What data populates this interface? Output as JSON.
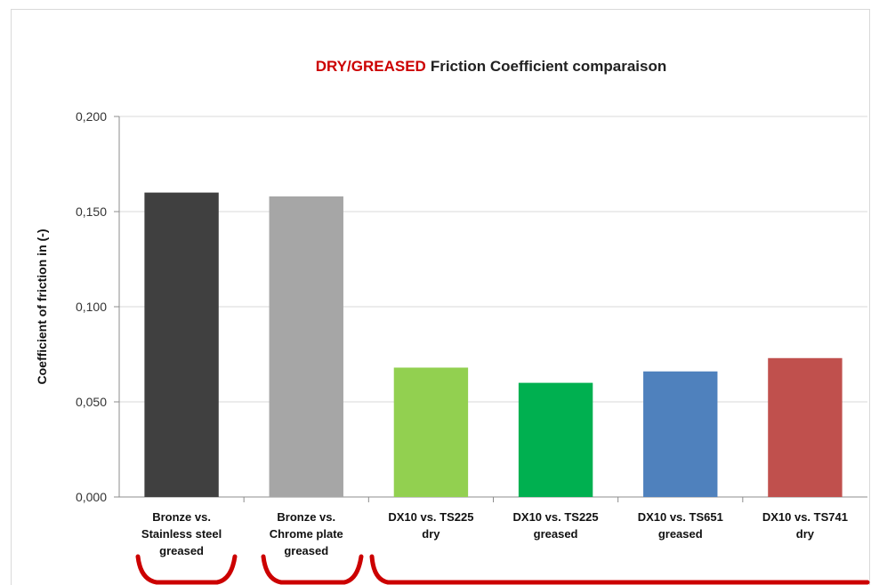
{
  "chart_data": {
    "type": "bar",
    "title_highlight": "DRY/GREASED",
    "title_rest": "Friction Coefficient comparaison",
    "ylabel": "Coefficient of friction in (-)",
    "xlabel": "",
    "ylim": [
      0,
      0.2
    ],
    "yticks": [
      0,
      0.05,
      0.1,
      0.15,
      0.2
    ],
    "ytick_labels": [
      "0,000",
      "0,050",
      "0,100",
      "0,150",
      "0,200"
    ],
    "grid": true,
    "categories": [
      [
        "Bronze vs.",
        "Stainless steel",
        "greased"
      ],
      [
        "Bronze vs.",
        "Chrome plate",
        "greased"
      ],
      [
        "DX10 vs. TS225",
        "dry"
      ],
      [
        "DX10 vs. TS225",
        "greased"
      ],
      [
        "DX10 vs. TS651",
        "greased"
      ],
      [
        "DX10 vs. TS741",
        "dry"
      ]
    ],
    "values": [
      0.16,
      0.158,
      0.068,
      0.06,
      0.066,
      0.073
    ],
    "colors": [
      "#404040",
      "#a6a6a6",
      "#92d050",
      "#00b050",
      "#4f81bd",
      "#c0504d"
    ],
    "title_highlight_color": "#cc0000",
    "bracket_color": "#cc0000"
  }
}
